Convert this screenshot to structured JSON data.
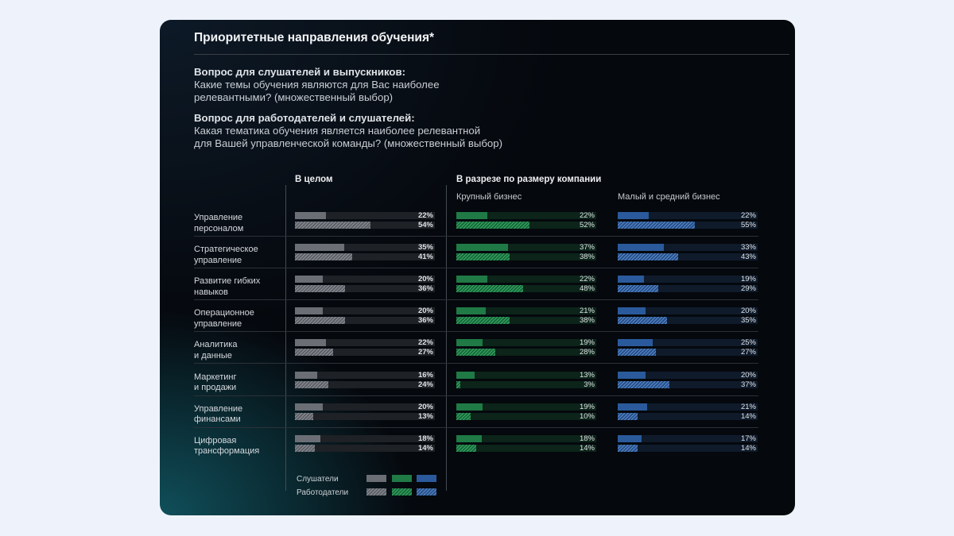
{
  "title": "Приоритетные направления обучения*",
  "question1": {
    "heading": "Вопрос для слушателей и выпускников:",
    "line1": "Какие темы обучения являются для Вас наиболее",
    "line2": "релевантными? (множественный выбор)"
  },
  "question2": {
    "heading": "Вопрос для работодателей и слушателей:",
    "line1": "Какая тематика обучения является наиболее релевантной",
    "line2": "для Вашей управленческой команды? (множественный выбор)"
  },
  "headers": {
    "overall": "В целом",
    "by_size": "В разрезе по размеру компании",
    "large": "Крупный бизнес",
    "sme": "Малый и средний бизнес"
  },
  "legend": {
    "listeners": "Слушатели",
    "employers": "Работодатели"
  },
  "colors": {
    "overall": "#6b6f75",
    "large": "#1f7a45",
    "sme": "#2a5a9b"
  },
  "chart_data": {
    "type": "bar",
    "title": "Приоритетные направления обучения*",
    "unit": "%",
    "categories": [
      [
        "Управление",
        "персоналом"
      ],
      [
        "Стратегическое",
        "управление"
      ],
      [
        "Развитие гибких",
        "навыков"
      ],
      [
        "Операционное",
        "управление"
      ],
      [
        "Аналитика",
        "и данные"
      ],
      [
        "Маркетинг",
        "и продажи"
      ],
      [
        "Управление",
        "финансами"
      ],
      [
        "Цифровая",
        "трансформация"
      ]
    ],
    "panels": [
      {
        "key": "overall",
        "name": "В целом",
        "series": [
          {
            "name": "Слушатели",
            "values": [
              22,
              35,
              20,
              20,
              22,
              16,
              20,
              18
            ]
          },
          {
            "name": "Работодатели",
            "values": [
              54,
              41,
              36,
              36,
              27,
              24,
              13,
              14
            ]
          }
        ]
      },
      {
        "key": "large",
        "name": "Крупный бизнес",
        "series": [
          {
            "name": "Слушатели",
            "values": [
              22,
              37,
              22,
              21,
              19,
              13,
              19,
              18
            ]
          },
          {
            "name": "Работодатели",
            "values": [
              52,
              38,
              48,
              38,
              28,
              3,
              10,
              14
            ]
          }
        ]
      },
      {
        "key": "sme",
        "name": "Малый и средний бизнес",
        "series": [
          {
            "name": "Слушатели",
            "values": [
              22,
              33,
              19,
              20,
              25,
              20,
              21,
              17
            ]
          },
          {
            "name": "Работодатели",
            "values": [
              55,
              43,
              29,
              35,
              27,
              37,
              14,
              14
            ]
          }
        ]
      }
    ],
    "xlim": [
      0,
      100
    ]
  }
}
